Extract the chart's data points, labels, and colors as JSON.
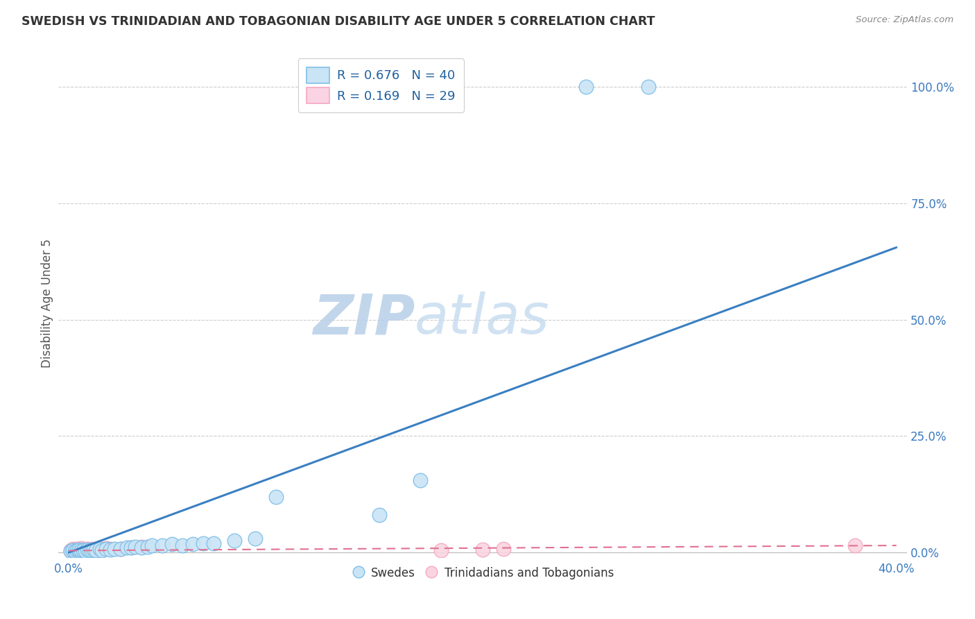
{
  "title": "SWEDISH VS TRINIDADIAN AND TOBAGONIAN DISABILITY AGE UNDER 5 CORRELATION CHART",
  "source": "Source: ZipAtlas.com",
  "ylabel": "Disability Age Under 5",
  "x_tick_labels": [
    "0.0%",
    "",
    "",
    "",
    "40.0%"
  ],
  "x_tick_values": [
    0.0,
    0.1,
    0.2,
    0.3,
    0.4
  ],
  "y_tick_labels_right": [
    "0.0%",
    "25.0%",
    "50.0%",
    "75.0%",
    "100.0%"
  ],
  "y_tick_values": [
    0.0,
    0.25,
    0.5,
    0.75,
    1.0
  ],
  "xlim": [
    -0.005,
    0.405
  ],
  "ylim": [
    -0.01,
    1.08
  ],
  "blue_color": "#7fbfe8",
  "blue_fill": "#c9e4f5",
  "blue_line_color": "#3a7fc1",
  "pink_color": "#f5a8c0",
  "pink_fill": "#fad4e2",
  "pink_line_color": "#e07090",
  "grid_color": "#cccccc",
  "watermark_zip_color": "#b8cfe8",
  "watermark_atlas_color": "#c8ddf0",
  "swedish_x": [
    0.001,
    0.002,
    0.002,
    0.003,
    0.004,
    0.005,
    0.005,
    0.006,
    0.007,
    0.008,
    0.009,
    0.01,
    0.011,
    0.012,
    0.013,
    0.015,
    0.016,
    0.018,
    0.02,
    0.022,
    0.025,
    0.028,
    0.03,
    0.032,
    0.035,
    0.038,
    0.04,
    0.045,
    0.05,
    0.055,
    0.06,
    0.065,
    0.07,
    0.08,
    0.09,
    0.1,
    0.15,
    0.17,
    0.25,
    0.28
  ],
  "swedish_y": [
    0.003,
    0.004,
    0.005,
    0.003,
    0.005,
    0.003,
    0.006,
    0.004,
    0.005,
    0.003,
    0.006,
    0.005,
    0.004,
    0.006,
    0.005,
    0.007,
    0.005,
    0.007,
    0.006,
    0.008,
    0.008,
    0.01,
    0.01,
    0.012,
    0.01,
    0.012,
    0.015,
    0.015,
    0.018,
    0.015,
    0.018,
    0.02,
    0.02,
    0.025,
    0.03,
    0.12,
    0.08,
    0.155,
    1.0,
    1.0
  ],
  "trinidadian_x": [
    0.001,
    0.001,
    0.002,
    0.002,
    0.003,
    0.003,
    0.004,
    0.004,
    0.005,
    0.005,
    0.006,
    0.006,
    0.007,
    0.008,
    0.009,
    0.01,
    0.011,
    0.012,
    0.014,
    0.016,
    0.018,
    0.02,
    0.025,
    0.03,
    0.035,
    0.18,
    0.2,
    0.21,
    0.38
  ],
  "trinidadian_y": [
    0.003,
    0.005,
    0.004,
    0.007,
    0.003,
    0.006,
    0.005,
    0.008,
    0.003,
    0.007,
    0.005,
    0.009,
    0.006,
    0.005,
    0.008,
    0.006,
    0.007,
    0.006,
    0.008,
    0.007,
    0.009,
    0.008,
    0.008,
    0.01,
    0.012,
    0.005,
    0.006,
    0.007,
    0.015
  ],
  "blue_line_x": [
    0.0,
    0.4
  ],
  "blue_line_y": [
    0.0,
    0.655
  ],
  "pink_line_x": [
    0.0,
    0.4
  ],
  "pink_line_y": [
    0.004,
    0.015
  ]
}
